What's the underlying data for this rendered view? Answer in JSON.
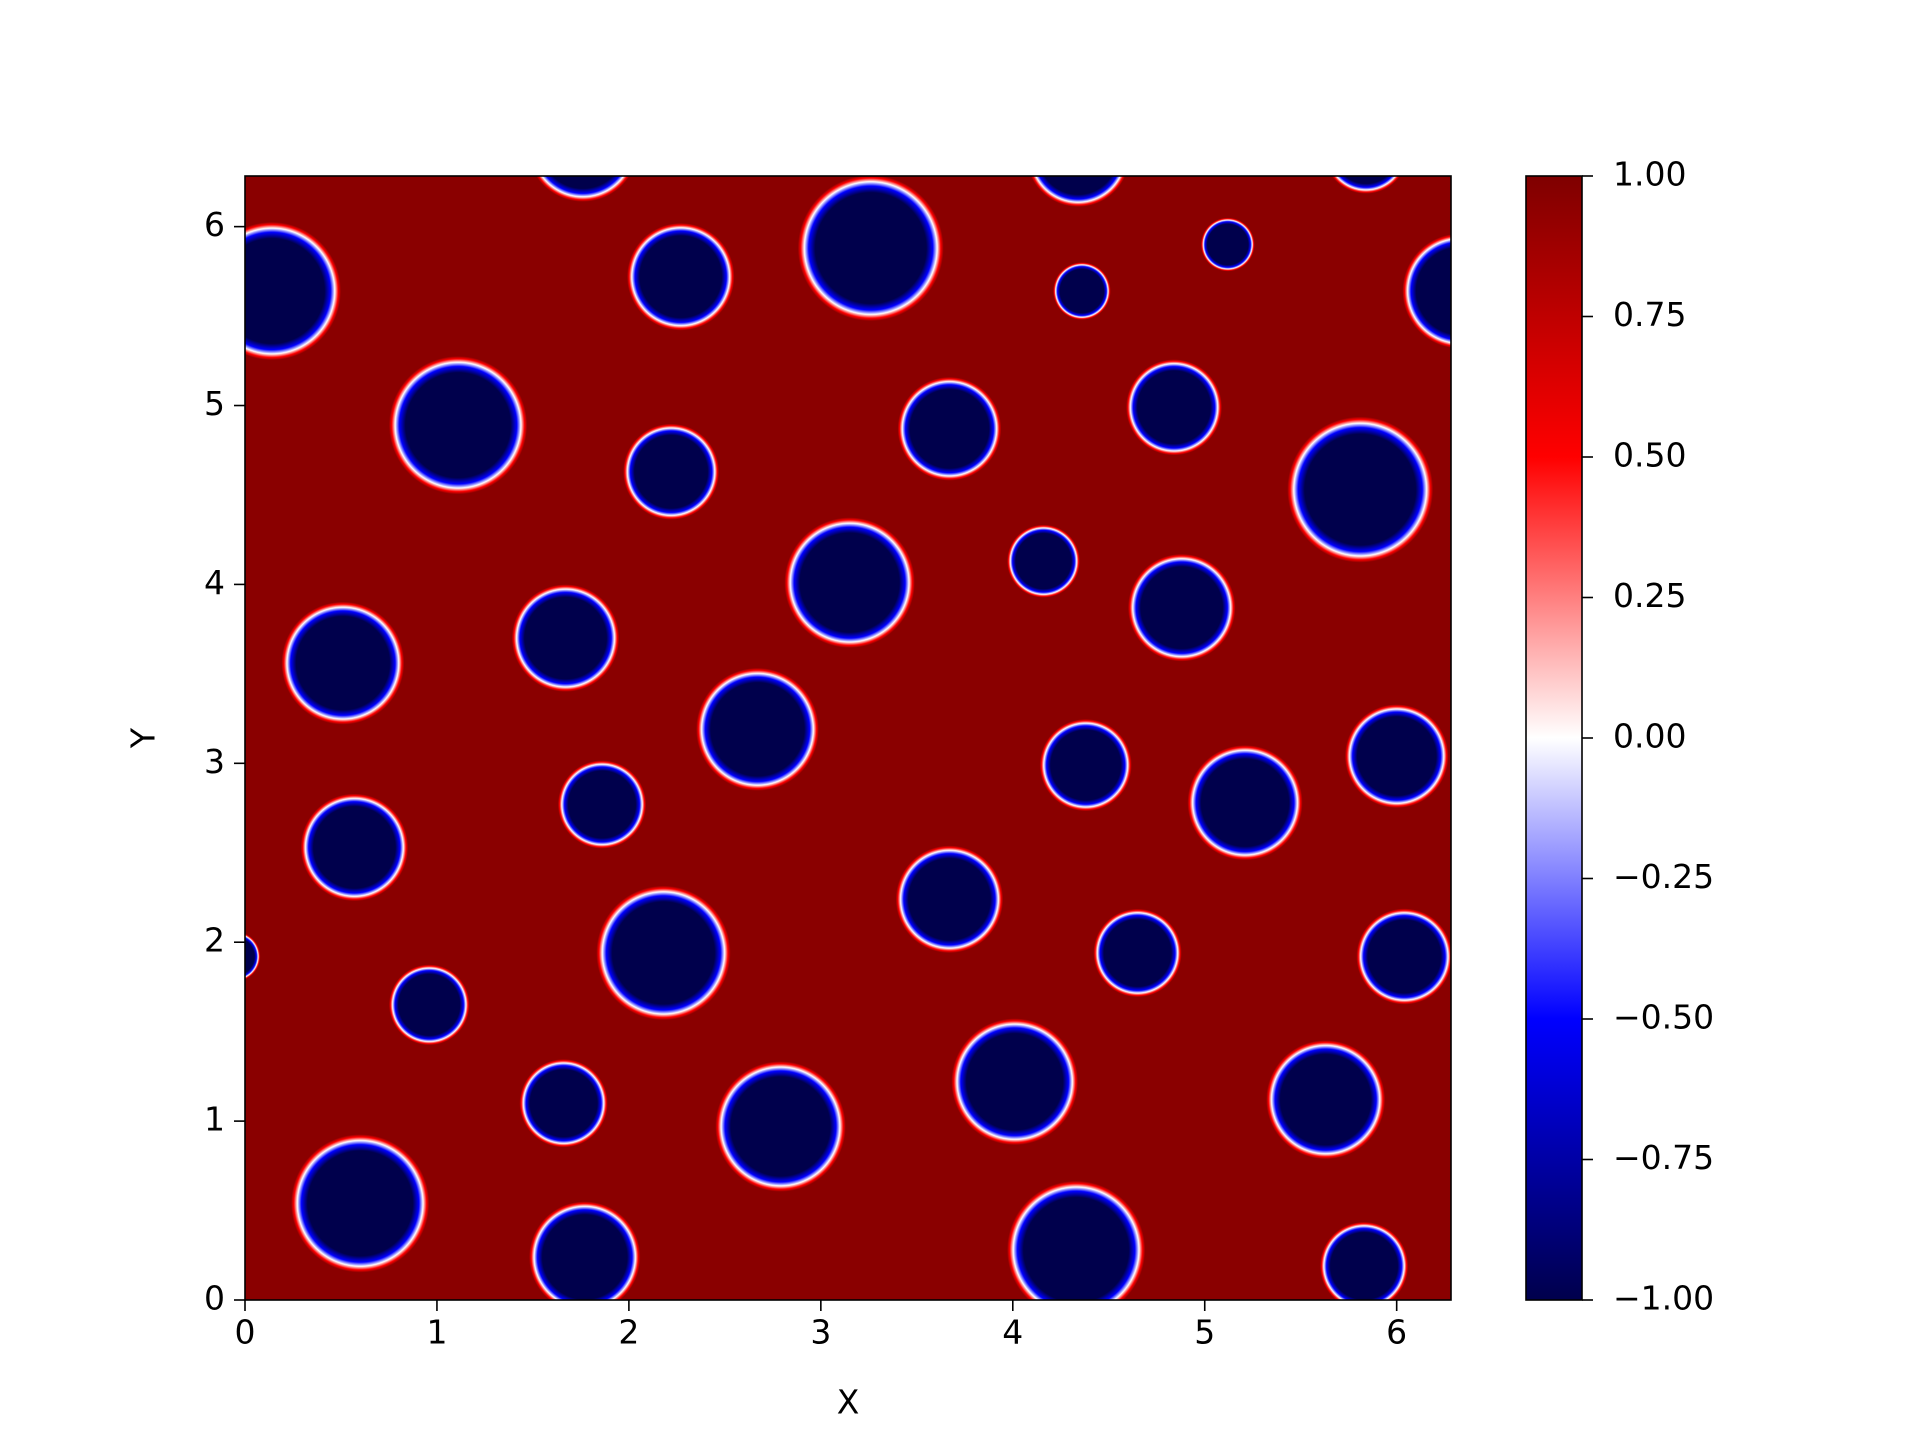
{
  "chart_data": {
    "type": "bubble",
    "xlabel": "X",
    "ylabel": "Y",
    "xlim": [
      0,
      6.283
    ],
    "ylim": [
      0,
      6.283
    ],
    "xticks": [
      0,
      1,
      2,
      3,
      4,
      5,
      6
    ],
    "yticks": [
      0,
      1,
      2,
      3,
      4,
      5,
      6
    ],
    "field_color": "#8a0000",
    "colormap": [
      "#00004c",
      "#0000ff",
      "#ffffff",
      "#ff0000",
      "#7f0000"
    ],
    "clim": [
      -1,
      1
    ],
    "cticks": [
      {
        "value": 1,
        "label": "1.00"
      },
      {
        "value": 0.75,
        "label": "0.75"
      },
      {
        "value": 0.5,
        "label": "0.50"
      },
      {
        "value": 0.25,
        "label": "0.25"
      },
      {
        "value": 0,
        "label": "0.00"
      },
      {
        "value": -0.25,
        "label": "−0.25"
      },
      {
        "value": -0.5,
        "label": "−0.50"
      },
      {
        "value": -0.75,
        "label": "−0.75"
      },
      {
        "value": -1,
        "label": "−1.00"
      }
    ],
    "x": [
      0.14,
      1.76,
      2.27,
      3.26,
      4.34,
      4.36,
      5.12,
      5.84,
      6.33,
      1.11,
      2.22,
      3.67,
      4.84,
      5.81,
      3.15,
      4.16,
      4.88,
      0.51,
      1.67,
      2.67,
      4.38,
      5.21,
      6.0,
      0.57,
      1.86,
      3.67,
      2.18,
      4.65,
      6.04,
      -0.05,
      0.96,
      1.66,
      2.79,
      4.01,
      5.63,
      0.6,
      1.77,
      4.33,
      5.83
    ],
    "values": [
      5.64,
      6.45,
      5.72,
      5.88,
      6.4,
      5.64,
      5.9,
      6.42,
      5.64,
      4.89,
      4.63,
      4.87,
      4.99,
      4.53,
      4.01,
      4.13,
      3.87,
      3.56,
      3.7,
      3.19,
      2.99,
      2.78,
      3.04,
      2.53,
      2.77,
      2.24,
      1.94,
      1.94,
      1.92,
      1.92,
      1.65,
      1.1,
      0.97,
      1.22,
      1.12,
      0.54,
      0.24,
      0.28,
      0.19
    ],
    "sizes": [
      0.36,
      0.29,
      0.28,
      0.38,
      0.27,
      0.15,
      0.14,
      0.22,
      0.3,
      0.36,
      0.25,
      0.27,
      0.25,
      0.38,
      0.34,
      0.19,
      0.28,
      0.32,
      0.28,
      0.32,
      0.24,
      0.3,
      0.27,
      0.28,
      0.23,
      0.28,
      0.35,
      0.23,
      0.25,
      0.13,
      0.21,
      0.23,
      0.34,
      0.33,
      0.31,
      0.36,
      0.29,
      0.36,
      0.23
    ]
  }
}
